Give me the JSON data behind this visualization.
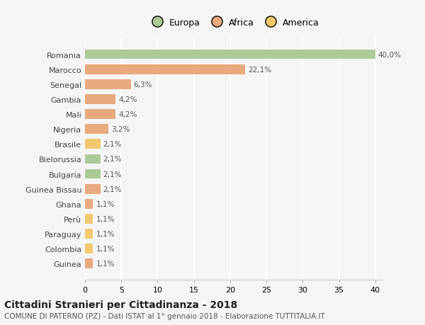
{
  "title1": "Cittadini Stranieri per Cittadinanza - 2018",
  "title2": "COMUNE DI PATERNO (PZ) - Dati ISTAT al 1° gennaio 2018 - Elaborazione TUTTITALIA.IT",
  "categories": [
    "Romania",
    "Marocco",
    "Senegal",
    "Gambia",
    "Mali",
    "Nigeria",
    "Brasile",
    "Bielorussia",
    "Bulgaria",
    "Guinea Bissau",
    "Ghana",
    "Perù",
    "Paraguay",
    "Colombia",
    "Guinea"
  ],
  "values": [
    40.0,
    22.1,
    6.3,
    4.2,
    4.2,
    3.2,
    2.1,
    2.1,
    2.1,
    2.1,
    1.1,
    1.1,
    1.1,
    1.1,
    1.1
  ],
  "labels": [
    "40,0%",
    "22,1%",
    "6,3%",
    "4,2%",
    "4,2%",
    "3,2%",
    "2,1%",
    "2,1%",
    "2,1%",
    "2,1%",
    "1,1%",
    "1,1%",
    "1,1%",
    "1,1%",
    "1,1%"
  ],
  "colors": [
    "#adc998",
    "#e8a97e",
    "#e8a97e",
    "#e8a97e",
    "#e8a97e",
    "#e8a97e",
    "#f0c96e",
    "#adc998",
    "#adc998",
    "#e8a97e",
    "#e8a97e",
    "#f0c96e",
    "#f0c96e",
    "#f0c96e",
    "#e8a97e"
  ],
  "legend_labels": [
    "Europa",
    "Africa",
    "America"
  ],
  "legend_colors": [
    "#adc998",
    "#e8a97e",
    "#f0c96e"
  ],
  "xlim": [
    0,
    41
  ],
  "xticks": [
    0,
    5,
    10,
    15,
    20,
    25,
    30,
    35,
    40
  ],
  "bg_color": "#f5f5f5",
  "grid_color": "#ffffff",
  "bar_height": 0.65,
  "label_fontsize": 7.5,
  "ytick_fontsize": 8,
  "xtick_fontsize": 8,
  "title1_fontsize": 10,
  "title2_fontsize": 7.5
}
